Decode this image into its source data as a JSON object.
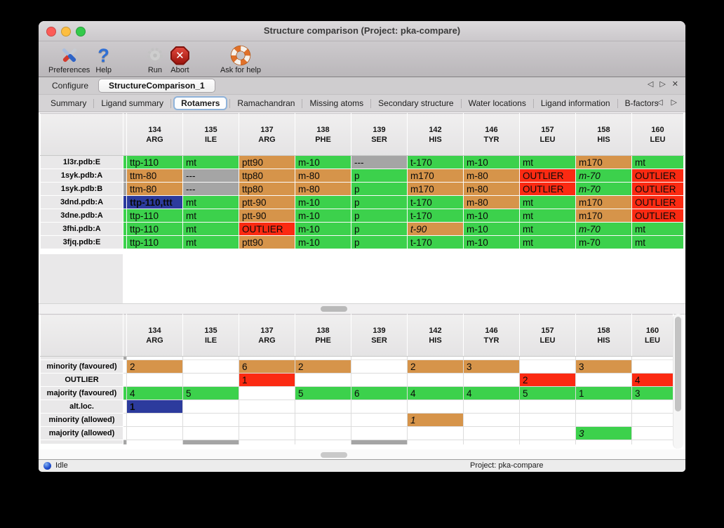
{
  "window": {
    "title": "Structure comparison (Project: pka-compare)",
    "traffic_lights": [
      "#fc5b57",
      "#fdbe41",
      "#33c94a"
    ]
  },
  "toolbar": {
    "items": [
      {
        "icon": "preferences-icon",
        "label": "Preferences"
      },
      {
        "icon": "help-icon",
        "label": "Help"
      },
      {
        "icon": "run-icon",
        "label": "Run"
      },
      {
        "icon": "abort-icon",
        "label": "Abort"
      },
      {
        "icon": "ask-for-help-icon",
        "label": "Ask for help"
      }
    ],
    "abort_glyph": "✕"
  },
  "tabs": {
    "items": [
      {
        "label": "Configure",
        "active": false
      },
      {
        "label": "StructureComparison_1",
        "active": true
      }
    ]
  },
  "icons": {
    "tab_prev": "◁",
    "tab_next": "▷",
    "tab_close": "✕"
  },
  "subtabs": {
    "items": [
      "Summary",
      "Ligand summary",
      "Rotamers",
      "Ramachandran",
      "Missing atoms",
      "Secondary structure",
      "Water locations",
      "Ligand information",
      "B-factors"
    ],
    "active_index": 2
  },
  "palette": {
    "green": "#3cd14c",
    "orange": "#d6944a",
    "red": "#fb2a12",
    "gray": "#a5a5a5",
    "blue": "#2c3b9d",
    "white": "#ffffff",
    "header_gray": "#e9e8e9"
  },
  "columns": [
    {
      "num": "134",
      "res": "ARG"
    },
    {
      "num": "135",
      "res": "ILE"
    },
    {
      "num": "137",
      "res": "ARG"
    },
    {
      "num": "138",
      "res": "PHE"
    },
    {
      "num": "139",
      "res": "SER"
    },
    {
      "num": "142",
      "res": "HIS"
    },
    {
      "num": "146",
      "res": "TYR"
    },
    {
      "num": "157",
      "res": "LEU"
    },
    {
      "num": "158",
      "res": "HIS"
    },
    {
      "num": "160",
      "res": "LEU"
    }
  ],
  "upper_table": {
    "rows": [
      {
        "label": "1l3r.pdb:E",
        "edge": "green",
        "cells": [
          {
            "t": "ttp-110",
            "c": "green"
          },
          {
            "t": "mt",
            "c": "green"
          },
          {
            "t": "ptt90",
            "c": "orange"
          },
          {
            "t": "m-10",
            "c": "green"
          },
          {
            "t": "---",
            "c": "gray"
          },
          {
            "t": "t-170",
            "c": "green"
          },
          {
            "t": "m-10",
            "c": "green"
          },
          {
            "t": "mt",
            "c": "green"
          },
          {
            "t": "m170",
            "c": "orange"
          },
          {
            "t": "mt",
            "c": "green"
          }
        ]
      },
      {
        "label": "1syk.pdb:A",
        "edge": "gray",
        "cells": [
          {
            "t": "ttm-80",
            "c": "orange"
          },
          {
            "t": "---",
            "c": "gray"
          },
          {
            "t": "ttp80",
            "c": "orange"
          },
          {
            "t": "m-80",
            "c": "orange"
          },
          {
            "t": "p",
            "c": "green"
          },
          {
            "t": "m170",
            "c": "orange"
          },
          {
            "t": "m-80",
            "c": "orange"
          },
          {
            "t": "OUTLIER",
            "c": "red"
          },
          {
            "t": "m-70",
            "c": "green",
            "i": true
          },
          {
            "t": "OUTLIER",
            "c": "red"
          }
        ]
      },
      {
        "label": "1syk.pdb:B",
        "edge": "gray",
        "cells": [
          {
            "t": "ttm-80",
            "c": "orange"
          },
          {
            "t": "---",
            "c": "gray"
          },
          {
            "t": "ttp80",
            "c": "orange"
          },
          {
            "t": "m-80",
            "c": "orange"
          },
          {
            "t": "p",
            "c": "green"
          },
          {
            "t": "m170",
            "c": "orange"
          },
          {
            "t": "m-80",
            "c": "orange"
          },
          {
            "t": "OUTLIER",
            "c": "red"
          },
          {
            "t": "m-70",
            "c": "green",
            "i": true
          },
          {
            "t": "OUTLIER",
            "c": "red"
          }
        ]
      },
      {
        "label": "3dnd.pdb:A",
        "edge": "blue",
        "cells": [
          {
            "t": "ttp-110,ttt",
            "c": "blue",
            "sel": true
          },
          {
            "t": "mt",
            "c": "green"
          },
          {
            "t": "ptt-90",
            "c": "orange"
          },
          {
            "t": "m-10",
            "c": "green"
          },
          {
            "t": "p",
            "c": "green"
          },
          {
            "t": "t-170",
            "c": "green"
          },
          {
            "t": "m-80",
            "c": "orange"
          },
          {
            "t": "mt",
            "c": "green"
          },
          {
            "t": "m170",
            "c": "orange"
          },
          {
            "t": "OUTLIER",
            "c": "red"
          }
        ]
      },
      {
        "label": "3dne.pdb:A",
        "edge": "green",
        "cells": [
          {
            "t": "ttp-110",
            "c": "green"
          },
          {
            "t": "mt",
            "c": "green"
          },
          {
            "t": "ptt-90",
            "c": "orange"
          },
          {
            "t": "m-10",
            "c": "green"
          },
          {
            "t": "p",
            "c": "green"
          },
          {
            "t": "t-170",
            "c": "green"
          },
          {
            "t": "m-10",
            "c": "green"
          },
          {
            "t": "mt",
            "c": "green"
          },
          {
            "t": "m170",
            "c": "orange"
          },
          {
            "t": "OUTLIER",
            "c": "red"
          }
        ]
      },
      {
        "label": "3fhi.pdb:A",
        "edge": "green",
        "cells": [
          {
            "t": "ttp-110",
            "c": "green"
          },
          {
            "t": "mt",
            "c": "green"
          },
          {
            "t": "OUTLIER",
            "c": "red"
          },
          {
            "t": "m-10",
            "c": "green"
          },
          {
            "t": "p",
            "c": "green"
          },
          {
            "t": "t-90",
            "c": "orange",
            "i": true
          },
          {
            "t": "m-10",
            "c": "green"
          },
          {
            "t": "mt",
            "c": "green"
          },
          {
            "t": "m-70",
            "c": "green",
            "i": true
          },
          {
            "t": "mt",
            "c": "green"
          }
        ]
      },
      {
        "label": "3fjq.pdb:E",
        "edge": "green",
        "cells": [
          {
            "t": "ttp-110",
            "c": "green"
          },
          {
            "t": "mt",
            "c": "green"
          },
          {
            "t": "ptt90",
            "c": "orange"
          },
          {
            "t": "m-10",
            "c": "green"
          },
          {
            "t": "p",
            "c": "green"
          },
          {
            "t": "t-170",
            "c": "green"
          },
          {
            "t": "m-10",
            "c": "green"
          },
          {
            "t": "mt",
            "c": "green"
          },
          {
            "t": "m-70",
            "c": "green"
          },
          {
            "t": "mt",
            "c": "green"
          }
        ]
      }
    ]
  },
  "lower_table": {
    "rows": [
      {
        "partial": true,
        "h": 5,
        "edge": "gray",
        "cells": [
          {
            "c": "white"
          },
          {
            "c": "white"
          },
          {
            "c": "white"
          },
          {
            "c": "white"
          },
          {
            "c": "white"
          },
          {
            "c": "white"
          },
          {
            "c": "white"
          },
          {
            "c": "white"
          },
          {
            "c": "white"
          },
          {
            "c": "white"
          }
        ]
      },
      {
        "label": "minority (favoured)",
        "edge": "white",
        "cells": [
          {
            "t": "2",
            "c": "orange"
          },
          {
            "t": "",
            "c": "white"
          },
          {
            "t": "6",
            "c": "orange"
          },
          {
            "t": "2",
            "c": "orange"
          },
          {
            "t": "",
            "c": "white"
          },
          {
            "t": "2",
            "c": "orange"
          },
          {
            "t": "3",
            "c": "orange"
          },
          {
            "t": "",
            "c": "white"
          },
          {
            "t": "3",
            "c": "orange"
          },
          {
            "t": "",
            "c": "white"
          }
        ]
      },
      {
        "label": "OUTLIER",
        "edge": "white",
        "cells": [
          {
            "t": "",
            "c": "white"
          },
          {
            "t": "",
            "c": "white"
          },
          {
            "t": "1",
            "c": "red"
          },
          {
            "t": "",
            "c": "white"
          },
          {
            "t": "",
            "c": "white"
          },
          {
            "t": "",
            "c": "white"
          },
          {
            "t": "",
            "c": "white"
          },
          {
            "t": "2",
            "c": "red"
          },
          {
            "t": "",
            "c": "white"
          },
          {
            "t": "4",
            "c": "red"
          }
        ]
      },
      {
        "label": "majority (favoured)",
        "edge": "green",
        "cells": [
          {
            "t": "4",
            "c": "green"
          },
          {
            "t": "5",
            "c": "green"
          },
          {
            "t": "",
            "c": "white"
          },
          {
            "t": "5",
            "c": "green"
          },
          {
            "t": "6",
            "c": "green"
          },
          {
            "t": "4",
            "c": "green"
          },
          {
            "t": "4",
            "c": "green"
          },
          {
            "t": "5",
            "c": "green"
          },
          {
            "t": "1",
            "c": "green"
          },
          {
            "t": "3",
            "c": "green"
          }
        ]
      },
      {
        "label": "alt.loc.",
        "edge": "white",
        "cells": [
          {
            "t": "1",
            "c": "blue"
          },
          {
            "t": "",
            "c": "white"
          },
          {
            "t": "",
            "c": "white"
          },
          {
            "t": "",
            "c": "white"
          },
          {
            "t": "",
            "c": "white"
          },
          {
            "t": "",
            "c": "white"
          },
          {
            "t": "",
            "c": "white"
          },
          {
            "t": "",
            "c": "white"
          },
          {
            "t": "",
            "c": "white"
          },
          {
            "t": "",
            "c": "white"
          }
        ]
      },
      {
        "label": "minority (allowed)",
        "edge": "white",
        "cells": [
          {
            "t": "",
            "c": "white"
          },
          {
            "t": "",
            "c": "white"
          },
          {
            "t": "",
            "c": "white"
          },
          {
            "t": "",
            "c": "white"
          },
          {
            "t": "",
            "c": "white"
          },
          {
            "t": "1",
            "c": "orange",
            "i": true
          },
          {
            "t": "",
            "c": "white"
          },
          {
            "t": "",
            "c": "white"
          },
          {
            "t": "",
            "c": "white"
          },
          {
            "t": "",
            "c": "white"
          }
        ]
      },
      {
        "label": "majority (allowed)",
        "edge": "white",
        "cells": [
          {
            "t": "",
            "c": "white"
          },
          {
            "t": "",
            "c": "white"
          },
          {
            "t": "",
            "c": "white"
          },
          {
            "t": "",
            "c": "white"
          },
          {
            "t": "",
            "c": "white"
          },
          {
            "t": "",
            "c": "white"
          },
          {
            "t": "",
            "c": "white"
          },
          {
            "t": "",
            "c": "white"
          },
          {
            "t": "3",
            "c": "green",
            "i": true
          },
          {
            "t": "",
            "c": "white"
          }
        ]
      },
      {
        "partial": true,
        "h": 6,
        "edge": "gray",
        "cells": [
          {
            "c": "white"
          },
          {
            "c": "gray"
          },
          {
            "c": "white"
          },
          {
            "c": "white"
          },
          {
            "c": "gray"
          },
          {
            "c": "white"
          },
          {
            "c": "white"
          },
          {
            "c": "white"
          },
          {
            "c": "white"
          },
          {
            "c": "white"
          }
        ]
      }
    ]
  },
  "status": {
    "state": "Idle",
    "project": "Project: pka-compare"
  }
}
